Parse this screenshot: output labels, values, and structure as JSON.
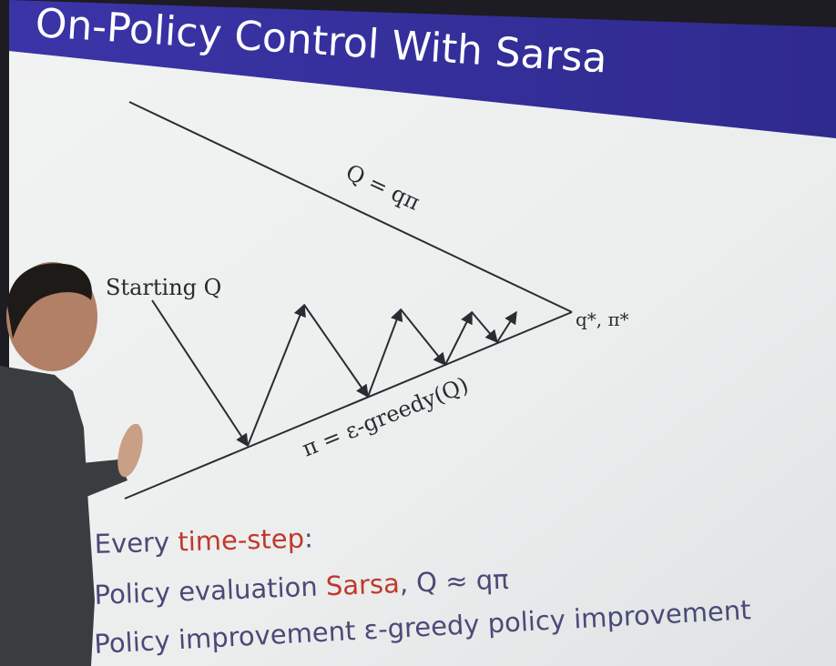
{
  "slide": {
    "title": "On-Policy Control With Sarsa",
    "labels": {
      "top_line": "Q = qπ",
      "bottom_line": "π = ε-greedy(Q)",
      "start": "Starting Q",
      "end": "q*, π*"
    },
    "text": {
      "line1_prefix": "Every ",
      "line1_accent": "time-step",
      "line1_suffix": ":",
      "line2_prefix": "Policy evaluation ",
      "line2_accent": "Sarsa",
      "line2_suffix": ", Q ≈ qπ",
      "line3": "Policy improvement ε-greedy policy improvement"
    }
  },
  "colors": {
    "title_bar": "#3d36a6",
    "slide_bg": "#eef0f0",
    "diagram_line": "#2b2b33",
    "text_blue": "#4a4a78",
    "text_red": "#c0392b"
  }
}
